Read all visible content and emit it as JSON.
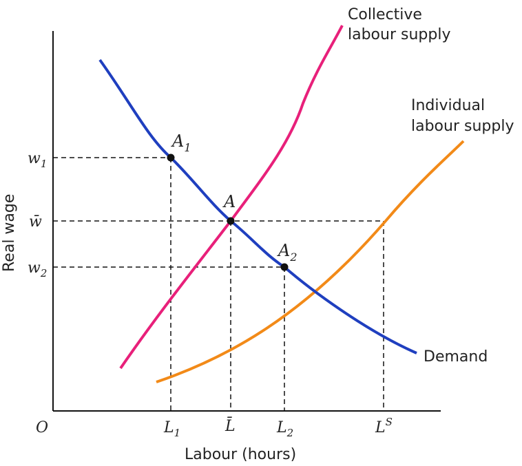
{
  "axes": {
    "origin": "O",
    "ylabel": "Real wage",
    "xlabel": "Labour (hours)",
    "y_ticks": [
      {
        "base": "w",
        "sub": "1"
      },
      {
        "base": "w̄",
        "sub": ""
      },
      {
        "base": "w",
        "sub": "2"
      }
    ],
    "x_ticks": [
      {
        "base": "L",
        "sub": "1",
        "sup": ""
      },
      {
        "base": "L̄",
        "sub": "",
        "sup": ""
      },
      {
        "base": "L",
        "sub": "2",
        "sup": ""
      },
      {
        "base": "L",
        "sub": "",
        "sup": "S"
      }
    ]
  },
  "curves": {
    "collective": {
      "label_line1": "Collective",
      "label_line2": "labour supply",
      "color": "#e8207a"
    },
    "individual": {
      "label_line1": "Individual",
      "label_line2": "labour supply",
      "color": "#f28a18"
    },
    "demand": {
      "label": "Demand",
      "color": "#1f3fbf"
    }
  },
  "points": {
    "a1": {
      "base": "A",
      "sub": "1"
    },
    "a": {
      "base": "A",
      "sub": ""
    },
    "a2": {
      "base": "A",
      "sub": "2"
    }
  }
}
